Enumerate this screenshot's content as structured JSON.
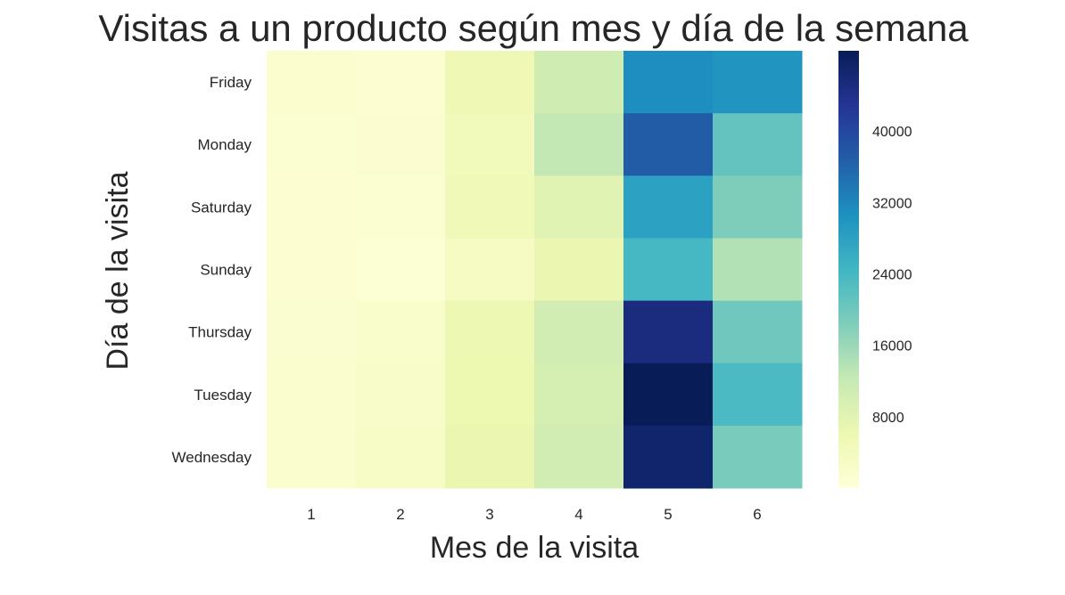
{
  "chart_data": {
    "type": "heatmap",
    "title": "Visitas a un producto según mes y día de la semana",
    "xlabel": "Mes de la visita",
    "ylabel": "Día de la visita",
    "x_categories": [
      "1",
      "2",
      "3",
      "4",
      "5",
      "6"
    ],
    "y_categories": [
      "Friday",
      "Monday",
      "Saturday",
      "Sunday",
      "Thursday",
      "Tuesday",
      "Wednesday"
    ],
    "values": [
      [
        1500,
        1000,
        5500,
        11000,
        31000,
        30000
      ],
      [
        1200,
        1400,
        4800,
        12500,
        37000,
        21000
      ],
      [
        1100,
        1300,
        5000,
        8000,
        28000,
        18500
      ],
      [
        1000,
        900,
        3500,
        6500,
        24000,
        14000
      ],
      [
        1600,
        2200,
        6000,
        10500,
        45000,
        20000
      ],
      [
        1800,
        2500,
        6200,
        10000,
        49000,
        23500
      ],
      [
        1700,
        2800,
        6500,
        10500,
        47000,
        19000
      ]
    ],
    "colorscale": "YlGnBu",
    "vmin": 0,
    "vmax": 49000,
    "colorbar_ticks": [
      8000,
      16000,
      24000,
      32000,
      40000
    ]
  }
}
